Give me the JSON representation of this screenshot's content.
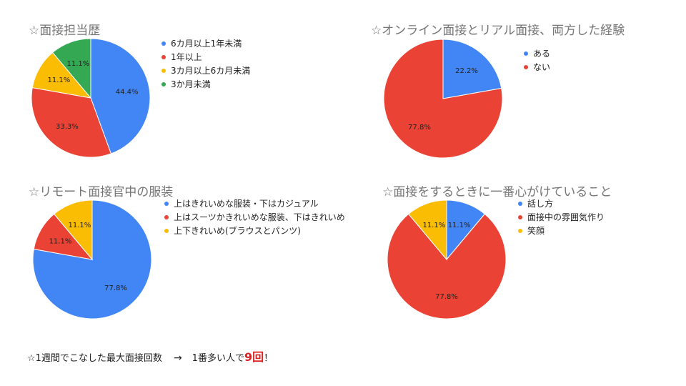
{
  "chart_data": [
    {
      "type": "pie",
      "title": "☆面接担当歴",
      "categories": [
        "6カ月以上1年未満",
        "1年以上",
        "3カ月以上6カ月未満",
        "3か月未満"
      ],
      "values": [
        44.4,
        33.3,
        11.1,
        11.1
      ],
      "data_labels": [
        "44.4%",
        "33.3%",
        "11.1%",
        "11.1%"
      ],
      "colors": [
        "#4285f4",
        "#ea4335",
        "#fbbc04",
        "#34a853"
      ],
      "legend": "right"
    },
    {
      "type": "pie",
      "title": "☆オンライン面接とリアル面接、両方した経験",
      "categories": [
        "ある",
        "ない"
      ],
      "values": [
        22.2,
        77.8
      ],
      "data_labels": [
        "22.2%",
        "77.8%"
      ],
      "colors": [
        "#4285f4",
        "#ea4335"
      ],
      "legend": "right"
    },
    {
      "type": "pie",
      "title": "☆リモート面接官中の服装",
      "categories": [
        "上はきれいめな服装・下はカジュアル",
        "上はスーツかきれいめな服装、下はきれいめ",
        "上下きれいめ(ブラウスとパンツ)"
      ],
      "values": [
        77.8,
        11.1,
        11.1
      ],
      "data_labels": [
        "77.8%",
        "11.1%",
        "11.1%"
      ],
      "colors": [
        "#4285f4",
        "#ea4335",
        "#fbbc04"
      ],
      "legend": "right"
    },
    {
      "type": "pie",
      "title": "☆面接をするときに一番心がけていること",
      "categories": [
        "話し方",
        "面接中の雰囲気作り",
        "笑顔"
      ],
      "values": [
        11.1,
        77.8,
        11.1
      ],
      "data_labels": [
        "11.1%",
        "77.8%",
        "11.1%"
      ],
      "colors": [
        "#4285f4",
        "#ea4335",
        "#fbbc04"
      ],
      "legend": "right"
    }
  ],
  "bottom_note": {
    "prefix": "☆1週間でこなした最大面接回数",
    "arrow": "→",
    "middle": "1番多い人で",
    "highlight": "9回",
    "suffix": "！"
  }
}
